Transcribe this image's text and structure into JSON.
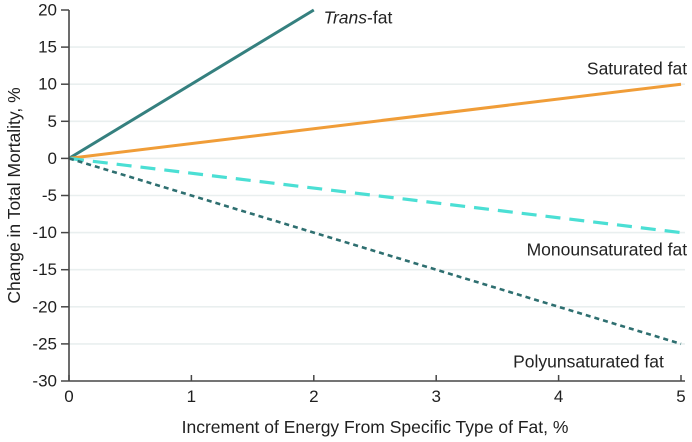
{
  "chart_data": {
    "type": "line",
    "title": "",
    "xlabel": "Increment of Energy From Specific Type of Fat, %",
    "ylabel": "Change in Total Mortality, %",
    "xlim": [
      0,
      5
    ],
    "ylim": [
      -30,
      20
    ],
    "xticks": [
      "0",
      "1",
      "2",
      "3",
      "4",
      "5"
    ],
    "xtick_values": [
      0,
      1,
      2,
      3,
      4,
      5
    ],
    "yticks": [
      "20",
      "15",
      "10",
      "5",
      "0",
      "-5",
      "-10",
      "-15",
      "-20",
      "-25",
      "-30"
    ],
    "ytick_values": [
      20,
      15,
      10,
      5,
      0,
      -5,
      -10,
      -15,
      -20,
      -25,
      -30
    ],
    "grid": {
      "horizontal": true,
      "vertical": false,
      "color": "#e9efef"
    },
    "legend_position": "inline-labels",
    "axis_color": "#474747",
    "text_color": "#1f1f1f",
    "background": "#ffffff",
    "series": [
      {
        "name": "Trans-fat",
        "label_parts": [
          {
            "text": "Trans",
            "italic": true
          },
          {
            "text": "-fat",
            "italic": false
          }
        ],
        "points": [
          [
            0,
            0
          ],
          [
            2,
            20
          ]
        ],
        "color": "#35807f",
        "style": "solid",
        "width": 3,
        "label": {
          "x": 2.08,
          "y": 19.0,
          "anchor": "start"
        }
      },
      {
        "name": "Saturated fat",
        "label_parts": [
          {
            "text": "Saturated fat",
            "italic": false
          }
        ],
        "points": [
          [
            0,
            0
          ],
          [
            5,
            10
          ]
        ],
        "color": "#f09d38",
        "style": "solid",
        "width": 3,
        "label": {
          "x": 5.05,
          "y": 12.1,
          "anchor": "end"
        }
      },
      {
        "name": "Monounsaturated fat",
        "label_parts": [
          {
            "text": "Monounsaturated fat",
            "italic": false
          }
        ],
        "points": [
          [
            0,
            0
          ],
          [
            5,
            -10
          ]
        ],
        "color": "#4bdfd4",
        "style": "dashed-long",
        "width": 3.2,
        "label": {
          "x": 5.05,
          "y": -12.3,
          "anchor": "end"
        }
      },
      {
        "name": "Polyunsaturated fat",
        "label_parts": [
          {
            "text": "Polyunsaturated fat",
            "italic": false
          }
        ],
        "points": [
          [
            0,
            0
          ],
          [
            5,
            -25
          ]
        ],
        "color": "#2e6f70",
        "style": "dashed-short",
        "width": 2.6,
        "label": {
          "x": 4.86,
          "y": -27.4,
          "anchor": "end"
        }
      }
    ]
  }
}
